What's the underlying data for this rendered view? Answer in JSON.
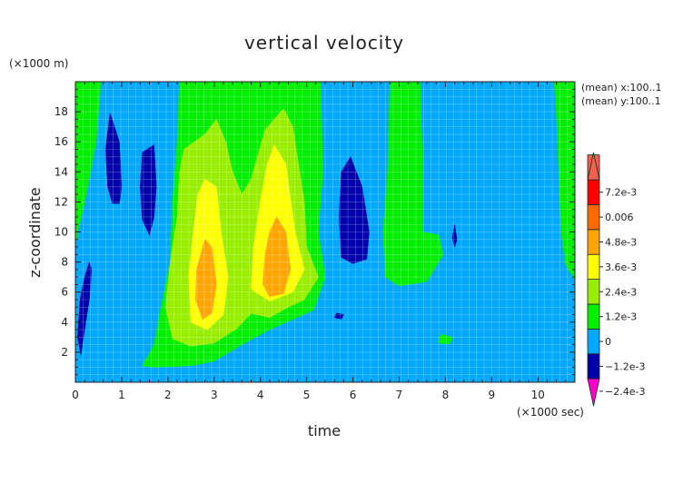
{
  "chart_data": {
    "type": "heatmap",
    "title": "vertical velocity",
    "xlabel": "time",
    "ylabel": "z-coordinate",
    "x_unit": "(×1000 sec)",
    "y_unit": "(×1000 m)",
    "xlim": [
      0,
      10.8
    ],
    "ylim": [
      0,
      20
    ],
    "x_ticks": [
      "0",
      "1",
      "2",
      "3",
      "4",
      "5",
      "6",
      "7",
      "8",
      "9",
      "10"
    ],
    "y_ticks": [
      "2",
      "4",
      "6",
      "8",
      "10",
      "12",
      "14",
      "16",
      "18"
    ],
    "annotations": [
      "(mean) x:100..1",
      "(mean) y:100..1"
    ],
    "grid": true,
    "colorbar": {
      "placement": "right",
      "tick_labels": [
        "7.2e-3",
        "0.006",
        "4.8e-3",
        "3.6e-3",
        "2.4e-3",
        "1.2e-3",
        "0",
        "−1.2e-3",
        "−2.4e-3"
      ],
      "colors": [
        "#f06050",
        "#ff0000",
        "#ff6a00",
        "#ffa500",
        "#ffff00",
        "#99ee00",
        "#00ee00",
        "#00a8ff",
        "#0000aa"
      ],
      "extend_top_color": "#f06050",
      "extend_bottom_color": "#ff00cc"
    },
    "regions": [
      {
        "level": "0 to 1.2e-3",
        "color": "#00ee00",
        "polygon": [
          [
            0,
            20
          ],
          [
            0.55,
            20
          ],
          [
            0.45,
            16
          ],
          [
            0.2,
            12
          ],
          [
            0.05,
            10
          ],
          [
            0,
            9
          ]
        ]
      },
      {
        "level": "0 to 1.2e-3",
        "color": "#00ee00",
        "polygon": [
          [
            2.25,
            20
          ],
          [
            5.3,
            20
          ],
          [
            5.35,
            14
          ],
          [
            5.25,
            10
          ],
          [
            5.4,
            7
          ],
          [
            5.15,
            4.8
          ],
          [
            4.2,
            3.5
          ],
          [
            3.6,
            2.5
          ],
          [
            3,
            1.4
          ],
          [
            2.5,
            1.1
          ],
          [
            1.7,
            1.0
          ],
          [
            1.45,
            1.1
          ],
          [
            1.7,
            2.5
          ],
          [
            1.85,
            5
          ],
          [
            2.05,
            8
          ],
          [
            2.1,
            12
          ],
          [
            2.2,
            16
          ]
        ]
      },
      {
        "level": "0 to 1.2e-3",
        "color": "#00ee00",
        "polygon": [
          [
            6.8,
            20
          ],
          [
            7.45,
            20
          ],
          [
            7.5,
            15
          ],
          [
            7.5,
            10
          ],
          [
            7.85,
            9.8
          ],
          [
            7.95,
            8.5
          ],
          [
            7.6,
            6.7
          ],
          [
            7.0,
            6.4
          ],
          [
            6.7,
            7
          ],
          [
            6.65,
            10
          ],
          [
            6.75,
            14
          ]
        ]
      },
      {
        "level": "0 to 1.2e-3",
        "color": "#00ee00",
        "polygon": [
          [
            10.35,
            20
          ],
          [
            10.8,
            20
          ],
          [
            10.8,
            6.8
          ],
          [
            10.6,
            7.8
          ],
          [
            10.5,
            10
          ],
          [
            10.45,
            14
          ],
          [
            10.4,
            18
          ]
        ]
      },
      {
        "level": "0 to 1.2e-3",
        "color": "#00ee00",
        "polygon": [
          [
            7.9,
            3.2
          ],
          [
            8.15,
            3.0
          ],
          [
            8.1,
            2.55
          ],
          [
            7.85,
            2.6
          ]
        ]
      },
      {
        "level": "1.2e-3 to 2.4e-3",
        "color": "#99ee00",
        "polygon": [
          [
            2.35,
            15.5
          ],
          [
            2.8,
            16.5
          ],
          [
            3.05,
            17.5
          ],
          [
            3.25,
            16
          ],
          [
            3.4,
            14
          ],
          [
            3.6,
            12.5
          ],
          [
            3.8,
            13.5
          ],
          [
            4.1,
            16.8
          ],
          [
            4.5,
            18.2
          ],
          [
            4.7,
            17
          ],
          [
            4.95,
            12
          ],
          [
            5.0,
            9
          ],
          [
            5.25,
            7
          ],
          [
            4.95,
            5.5
          ],
          [
            4.6,
            5.0
          ],
          [
            4.2,
            4.3
          ],
          [
            3.8,
            4.6
          ],
          [
            3.5,
            3.6
          ],
          [
            3.0,
            2.6
          ],
          [
            2.5,
            2.4
          ],
          [
            2.1,
            2.9
          ],
          [
            1.95,
            5
          ],
          [
            2.05,
            8
          ],
          [
            2.2,
            11
          ],
          [
            2.25,
            14
          ]
        ]
      },
      {
        "level": "2.4e-3 to 3.6e-3",
        "color": "#ffff00",
        "polygon": [
          [
            2.8,
            13.5
          ],
          [
            3.05,
            13
          ],
          [
            3.15,
            10
          ],
          [
            3.3,
            7
          ],
          [
            3.2,
            4.5
          ],
          [
            2.85,
            3.5
          ],
          [
            2.5,
            4.0
          ],
          [
            2.45,
            7
          ],
          [
            2.55,
            10
          ],
          [
            2.65,
            12.5
          ]
        ]
      },
      {
        "level": "2.4e-3 to 3.6e-3",
        "color": "#ffff00",
        "polygon": [
          [
            4.3,
            15.8
          ],
          [
            4.55,
            14.5
          ],
          [
            4.75,
            10
          ],
          [
            4.95,
            7.5
          ],
          [
            4.7,
            6
          ],
          [
            4.2,
            5.4
          ],
          [
            3.8,
            6.2
          ],
          [
            3.85,
            9
          ],
          [
            4.0,
            12
          ],
          [
            4.15,
            14.5
          ]
        ]
      },
      {
        "level": "3.6e-3 to 4.8e-3",
        "color": "#ffa500",
        "polygon": [
          [
            2.8,
            9.5
          ],
          [
            2.95,
            9.0
          ],
          [
            3.05,
            6.5
          ],
          [
            2.95,
            4.6
          ],
          [
            2.75,
            4.2
          ],
          [
            2.6,
            5.5
          ],
          [
            2.62,
            7.5
          ]
        ]
      },
      {
        "level": "3.6e-3 to 4.8e-3",
        "color": "#ffa500",
        "polygon": [
          [
            4.35,
            11.0
          ],
          [
            4.55,
            10
          ],
          [
            4.65,
            7.5
          ],
          [
            4.5,
            5.9
          ],
          [
            4.2,
            5.7
          ],
          [
            4.05,
            6.5
          ],
          [
            4.1,
            8.5
          ],
          [
            4.2,
            10
          ]
        ]
      },
      {
        "level": "-2.4e-3 to -1.2e-3",
        "color": "#0000aa",
        "polygon": [
          [
            0.3,
            8
          ],
          [
            0.35,
            7.5
          ],
          [
            0.3,
            5.5
          ],
          [
            0.2,
            3.5
          ],
          [
            0.12,
            1.8
          ],
          [
            0.05,
            3
          ],
          [
            0.1,
            5.5
          ],
          [
            0.2,
            7
          ]
        ]
      },
      {
        "level": "-2.4e-3 to -1.2e-3",
        "color": "#0000aa",
        "polygon": [
          [
            0.75,
            17.9
          ],
          [
            0.95,
            16
          ],
          [
            1.0,
            13
          ],
          [
            0.95,
            11.9
          ],
          [
            0.8,
            11.9
          ],
          [
            0.7,
            13
          ],
          [
            0.65,
            15.5
          ]
        ]
      },
      {
        "level": "-2.4e-3 to -1.2e-3",
        "color": "#0000aa",
        "polygon": [
          [
            1.7,
            15.8
          ],
          [
            1.75,
            13
          ],
          [
            1.7,
            11
          ],
          [
            1.6,
            9.8
          ],
          [
            1.45,
            10.8
          ],
          [
            1.4,
            13
          ],
          [
            1.45,
            15.3
          ]
        ]
      },
      {
        "level": "-2.4e-3 to -1.2e-3",
        "color": "#0000aa",
        "polygon": [
          [
            5.95,
            15
          ],
          [
            6.2,
            13
          ],
          [
            6.35,
            10
          ],
          [
            6.3,
            8.2
          ],
          [
            6.0,
            7.9
          ],
          [
            5.75,
            8.3
          ],
          [
            5.7,
            11
          ],
          [
            5.75,
            14
          ]
        ]
      },
      {
        "level": "-2.4e-3 to -1.2e-3",
        "color": "#0000aa",
        "polygon": [
          [
            5.65,
            4.6
          ],
          [
            5.8,
            4.5
          ],
          [
            5.75,
            4.2
          ],
          [
            5.6,
            4.3
          ]
        ]
      },
      {
        "level": "-2.4e-3 to -1.2e-3",
        "color": "#0000aa",
        "polygon": [
          [
            8.2,
            10.5
          ],
          [
            8.25,
            9.5
          ],
          [
            8.2,
            9.0
          ],
          [
            8.15,
            9.6
          ]
        ]
      }
    ]
  }
}
